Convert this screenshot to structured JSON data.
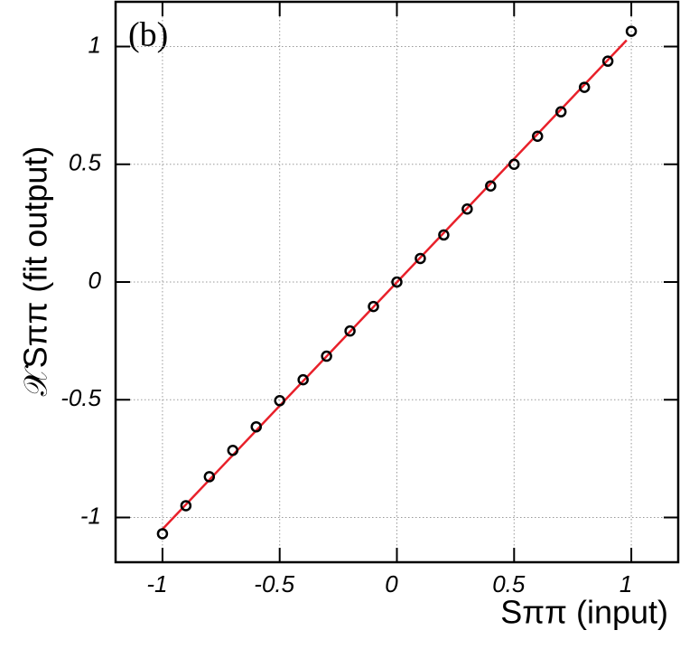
{
  "chart_data": {
    "type": "scatter",
    "annotation": "(b)",
    "xlabel": "Sππ (input)",
    "ylabel": "𝒳Sππ (fit output)",
    "x": [
      -1,
      -0.9,
      -0.8,
      -0.7,
      -0.6,
      -0.5,
      -0.4,
      -0.3,
      -0.2,
      -0.1,
      0,
      0.1,
      0.2,
      0.3,
      0.4,
      0.5,
      0.6,
      0.7,
      0.8,
      0.9,
      1
    ],
    "series": [
      {
        "color": "#000000",
        "values": [
          -1.069,
          -0.95,
          -0.827,
          -0.715,
          -0.615,
          -0.504,
          -0.415,
          -0.315,
          -0.208,
          -0.104,
          0,
          0.1,
          0.2,
          0.31,
          0.408,
          0.5,
          0.619,
          0.723,
          0.827,
          0.938,
          1.065
        ]
      }
    ],
    "fit": {
      "color": "#e8202a",
      "x": [
        -1,
        0.98
      ],
      "values": [
        -1.05,
        1.027
      ]
    },
    "xlim": [
      -1.2,
      1.2
    ],
    "ylim": [
      -1.19,
      1.19
    ],
    "xticks": [
      -1,
      -0.5,
      0,
      0.5,
      1
    ],
    "yticks": [
      -1,
      -0.5,
      0,
      0.5,
      1
    ],
    "grid": true
  }
}
